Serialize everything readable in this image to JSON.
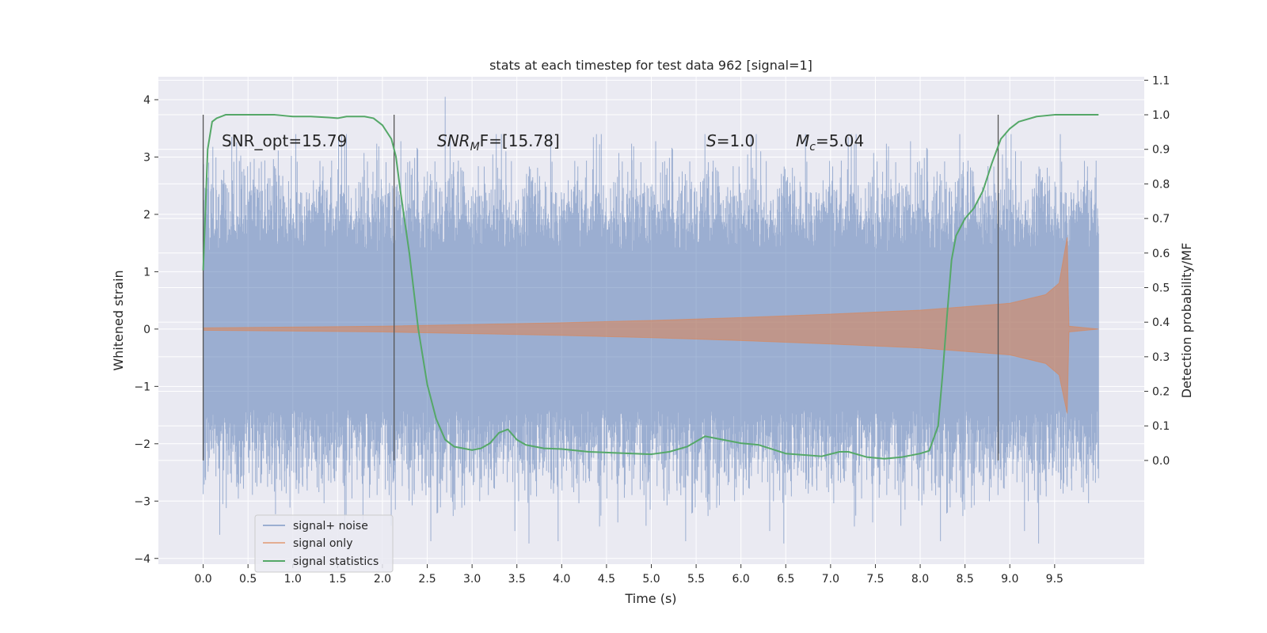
{
  "chart_data": {
    "type": "line",
    "title": "stats at each timestep for test data 962 [signal=1]",
    "xlabel": "Time (s)",
    "ylabel": "Whitened strain",
    "y2label": "Detection probability/MF",
    "xlim": [
      -0.5,
      10.5
    ],
    "ylim": [
      -4.1,
      4.4
    ],
    "y2lim": [
      -0.3,
      1.11
    ],
    "xticks": [
      "0.0",
      "0.5",
      "1.0",
      "1.5",
      "2.0",
      "2.5",
      "3.0",
      "3.5",
      "4.0",
      "4.5",
      "5.0",
      "5.5",
      "6.0",
      "6.5",
      "7.0",
      "7.5",
      "8.0",
      "8.5",
      "9.0",
      "9.5"
    ],
    "yticks": [
      "4",
      "3",
      "2",
      "1",
      "0",
      "−1",
      "−2",
      "−3",
      "−4"
    ],
    "y2ticks": [
      "1.1",
      "1.0",
      "0.9",
      "0.8",
      "0.7",
      "0.6",
      "0.5",
      "0.4",
      "0.3",
      "0.2",
      "0.1",
      "0.0"
    ],
    "grid": true,
    "legend_position": "lower-left",
    "colors": {
      "background": "#eaeaf2",
      "grid": "#ffffff",
      "noise": "#4c72b0",
      "signal": "#dd8452",
      "stats": "#55a868",
      "vlines": "#555555"
    },
    "annotations": {
      "snr_opt": "SNR_opt=15.79",
      "snr_mf_name": "SNR",
      "snr_mf_sub": "M",
      "snr_mf_rest": "F=[15.78]",
      "s_name": "S",
      "s_value": "=1.0",
      "mc_name": "M",
      "mc_sub": "c",
      "mc_value": "=5.04"
    },
    "vertical_lines_x": [
      0.0,
      2.13,
      8.87
    ],
    "series": [
      {
        "name": "signal+ noise",
        "kind": "strain",
        "envelope_p95": 2.5,
        "typical_peak": 3.4,
        "extreme_min": -3.7,
        "extreme_max": 4.05,
        "x_range": [
          0.0,
          9.99
        ]
      },
      {
        "name": "signal only",
        "kind": "chirp",
        "amplitude_envelope": [
          [
            0.0,
            0.02
          ],
          [
            2.0,
            0.05
          ],
          [
            3.0,
            0.08
          ],
          [
            4.0,
            0.11
          ],
          [
            5.0,
            0.15
          ],
          [
            6.0,
            0.2
          ],
          [
            7.0,
            0.26
          ],
          [
            8.0,
            0.33
          ],
          [
            9.0,
            0.45
          ],
          [
            9.4,
            0.6
          ],
          [
            9.55,
            0.8
          ],
          [
            9.64,
            1.6
          ],
          [
            9.66,
            0.05
          ],
          [
            9.99,
            0.0
          ]
        ],
        "x_range": [
          0.0,
          9.99
        ]
      },
      {
        "name": "signal statistics",
        "kind": "line",
        "axis": "right",
        "x": [
          0.0,
          0.05,
          0.1,
          0.15,
          0.25,
          0.5,
          0.8,
          1.0,
          1.2,
          1.4,
          1.5,
          1.6,
          1.8,
          1.9,
          2.0,
          2.1,
          2.15,
          2.2,
          2.3,
          2.4,
          2.5,
          2.6,
          2.7,
          2.8,
          2.9,
          3.0,
          3.1,
          3.2,
          3.3,
          3.4,
          3.5,
          3.6,
          3.8,
          4.0,
          4.3,
          4.6,
          5.0,
          5.2,
          5.4,
          5.6,
          5.8,
          6.0,
          6.2,
          6.5,
          6.9,
          7.1,
          7.2,
          7.4,
          7.6,
          7.8,
          8.0,
          8.1,
          8.2,
          8.25,
          8.3,
          8.35,
          8.4,
          8.5,
          8.6,
          8.7,
          8.8,
          8.9,
          9.0,
          9.1,
          9.3,
          9.5,
          9.7,
          9.99
        ],
        "values": [
          0.55,
          0.9,
          0.98,
          0.99,
          1.0,
          1.0,
          1.0,
          0.995,
          0.995,
          0.992,
          0.99,
          0.995,
          0.995,
          0.99,
          0.97,
          0.93,
          0.88,
          0.78,
          0.6,
          0.38,
          0.22,
          0.12,
          0.06,
          0.04,
          0.035,
          0.03,
          0.035,
          0.05,
          0.08,
          0.09,
          0.06,
          0.045,
          0.035,
          0.033,
          0.025,
          0.022,
          0.018,
          0.025,
          0.04,
          0.07,
          0.06,
          0.05,
          0.045,
          0.02,
          0.012,
          0.025,
          0.025,
          0.01,
          0.005,
          0.01,
          0.02,
          0.028,
          0.1,
          0.25,
          0.42,
          0.58,
          0.65,
          0.7,
          0.73,
          0.78,
          0.86,
          0.93,
          0.96,
          0.98,
          0.995,
          1.0,
          1.0,
          1.0
        ]
      }
    ]
  }
}
